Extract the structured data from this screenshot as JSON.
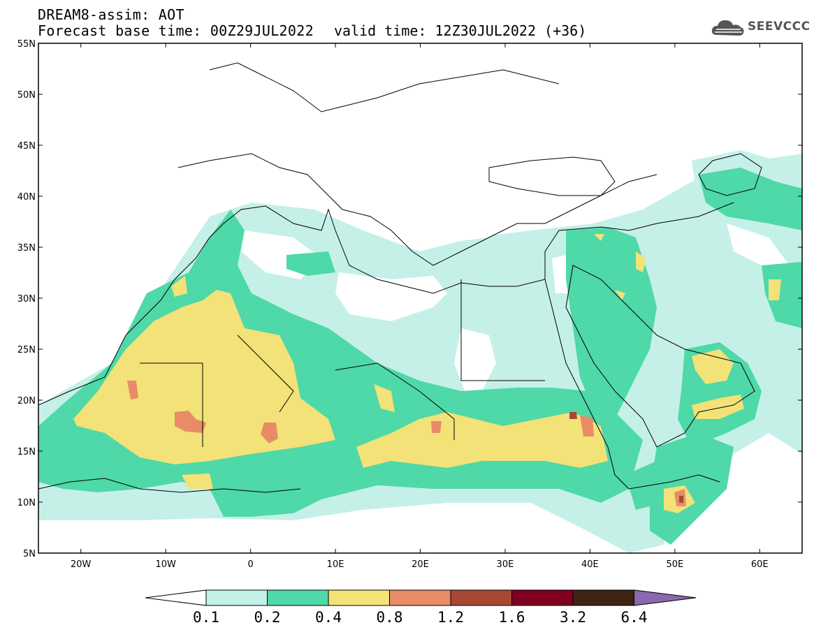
{
  "header": {
    "title": "DREAM8-assim: AOT",
    "base_time": "Forecast base time: 00Z29JUL2022",
    "valid_time": "valid time: 12Z30JUL2022 (+36)",
    "logo_text": "SEEVCCC"
  },
  "axes": {
    "x_ticks": [
      {
        "value": -20,
        "label": "20W"
      },
      {
        "value": -10,
        "label": "10W"
      },
      {
        "value": 0,
        "label": "0"
      },
      {
        "value": 10,
        "label": "10E"
      },
      {
        "value": 20,
        "label": "20E"
      },
      {
        "value": 30,
        "label": "30E"
      },
      {
        "value": 40,
        "label": "40E"
      },
      {
        "value": 50,
        "label": "50E"
      },
      {
        "value": 60,
        "label": "60E"
      }
    ],
    "y_ticks": [
      {
        "value": 55,
        "label": "55N"
      },
      {
        "value": 50,
        "label": "50N"
      },
      {
        "value": 45,
        "label": "45N"
      },
      {
        "value": 40,
        "label": "40N"
      },
      {
        "value": 35,
        "label": "35N"
      },
      {
        "value": 30,
        "label": "30N"
      },
      {
        "value": 25,
        "label": "25N"
      },
      {
        "value": 20,
        "label": "20N"
      },
      {
        "value": 15,
        "label": "15N"
      },
      {
        "value": 10,
        "label": "10N"
      },
      {
        "value": 5,
        "label": "5N"
      }
    ],
    "lon_range": [
      -25,
      65
    ],
    "lat_range": [
      5,
      55
    ]
  },
  "colorbar": {
    "labels": [
      "0.1",
      "0.2",
      "0.4",
      "0.8",
      "1.2",
      "1.6",
      "3.2",
      "6.4"
    ],
    "colors": [
      "#c4f0e8",
      "#4fd8a8",
      "#f2e278",
      "#e88c68",
      "#a84834",
      "#800020",
      "#3e2412",
      "#8c68b0"
    ],
    "below_color": "#ffffff"
  }
}
